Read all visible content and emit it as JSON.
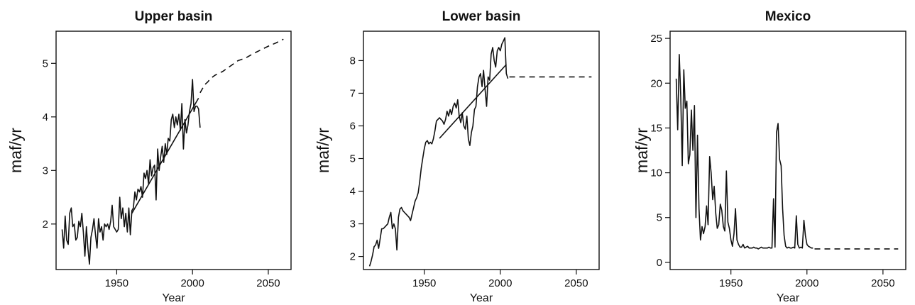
{
  "chart_data": [
    {
      "type": "line",
      "title": "Upper basin",
      "xlabel": "Year",
      "ylabel": "maf/yr",
      "xlim": [
        1910,
        2065
      ],
      "ylim": [
        1.15,
        5.6
      ],
      "xticks": [
        1950,
        2000,
        2050
      ],
      "yticks": [
        2,
        3,
        4,
        5
      ],
      "grid": false,
      "series": [
        {
          "style": "solid",
          "x": [
            1914,
            1915,
            1916,
            1917,
            1918,
            1919,
            1920,
            1921,
            1922,
            1923,
            1924,
            1925,
            1926,
            1927,
            1928,
            1929,
            1930,
            1931,
            1932,
            1933,
            1934,
            1935,
            1936,
            1937,
            1938,
            1939,
            1940,
            1941,
            1942,
            1943,
            1944,
            1945,
            1946,
            1947,
            1948,
            1949,
            1950,
            1951,
            1952,
            1953,
            1954,
            1955,
            1956,
            1957,
            1958,
            1959,
            1960,
            1961,
            1962,
            1963,
            1964,
            1965,
            1966,
            1967,
            1968,
            1969,
            1970,
            1971,
            1972,
            1973,
            1974,
            1975,
            1976,
            1977,
            1978,
            1979,
            1980,
            1981,
            1982,
            1983,
            1984,
            1985,
            1986,
            1987,
            1988,
            1989,
            1990,
            1991,
            1992,
            1993,
            1994,
            1995,
            1996,
            1997,
            1998,
            1999,
            2000,
            2001,
            2002,
            2003,
            2004,
            2005
          ],
          "y": [
            1.9,
            1.55,
            2.15,
            1.7,
            1.62,
            2.2,
            2.3,
            1.95,
            2.0,
            1.7,
            1.75,
            2.05,
            1.95,
            2.2,
            1.85,
            1.4,
            1.95,
            1.55,
            1.25,
            1.75,
            1.9,
            2.1,
            1.8,
            1.55,
            2.1,
            1.85,
            1.95,
            1.7,
            2.0,
            1.95,
            2.0,
            1.9,
            2.05,
            2.35,
            1.95,
            1.9,
            1.85,
            1.9,
            2.5,
            2.1,
            2.3,
            1.95,
            2.2,
            1.85,
            2.3,
            1.8,
            2.25,
            2.3,
            2.6,
            2.45,
            2.65,
            2.6,
            2.7,
            2.5,
            2.95,
            2.85,
            3.0,
            2.75,
            3.2,
            2.9,
            3.05,
            3.1,
            2.45,
            3.4,
            3.0,
            3.25,
            3.45,
            3.15,
            3.5,
            3.3,
            3.6,
            3.55,
            3.95,
            4.05,
            3.8,
            4.0,
            3.85,
            4.05,
            3.75,
            4.25,
            3.4,
            3.95,
            3.7,
            3.85,
            4.1,
            4.25,
            4.7,
            4.1,
            4.2,
            4.2,
            4.15,
            3.8
          ]
        },
        {
          "style": "solid",
          "x": [
            1960,
            2004
          ],
          "y": [
            2.2,
            4.35
          ]
        },
        {
          "style": "dashed",
          "x": [
            2005,
            2008,
            2010,
            2012,
            2015,
            2020,
            2025,
            2030,
            2035,
            2040,
            2045,
            2050,
            2055,
            2060
          ],
          "y": [
            4.45,
            4.6,
            4.65,
            4.72,
            4.78,
            4.85,
            4.95,
            5.05,
            5.1,
            5.18,
            5.25,
            5.32,
            5.38,
            5.45
          ]
        }
      ]
    },
    {
      "type": "line",
      "title": "Lower basin",
      "xlabel": "Year",
      "ylabel": "maf/yr",
      "xlim": [
        1910,
        2065
      ],
      "ylim": [
        1.6,
        8.9
      ],
      "xticks": [
        1950,
        2000,
        2050
      ],
      "yticks": [
        2,
        3,
        4,
        5,
        6,
        7,
        8
      ],
      "grid": false,
      "series": [
        {
          "style": "solid",
          "x": [
            1914,
            1915,
            1916,
            1917,
            1918,
            1919,
            1920,
            1921,
            1922,
            1923,
            1924,
            1925,
            1926,
            1927,
            1928,
            1929,
            1930,
            1931,
            1932,
            1933,
            1934,
            1935,
            1936,
            1937,
            1938,
            1939,
            1940,
            1941,
            1942,
            1943,
            1944,
            1945,
            1946,
            1947,
            1948,
            1949,
            1950,
            1951,
            1952,
            1953,
            1954,
            1955,
            1956,
            1957,
            1958,
            1959,
            1960,
            1961,
            1962,
            1963,
            1964,
            1965,
            1966,
            1967,
            1968,
            1969,
            1970,
            1971,
            1972,
            1973,
            1974,
            1975,
            1976,
            1977,
            1978,
            1979,
            1980,
            1981,
            1982,
            1983,
            1984,
            1985,
            1986,
            1987,
            1988,
            1989,
            1990,
            1991,
            1992,
            1993,
            1994,
            1995,
            1996,
            1997,
            1998,
            1999,
            2000,
            2001,
            2002,
            2003,
            2004,
            2005
          ],
          "y": [
            1.7,
            1.85,
            2.05,
            2.3,
            2.35,
            2.5,
            2.25,
            2.55,
            2.85,
            2.85,
            2.9,
            2.95,
            3.0,
            3.2,
            3.35,
            2.85,
            3.0,
            2.85,
            2.2,
            3.2,
            3.45,
            3.5,
            3.4,
            3.35,
            3.3,
            3.25,
            3.2,
            3.1,
            3.3,
            3.5,
            3.7,
            3.8,
            3.95,
            4.3,
            4.7,
            5.0,
            5.3,
            5.5,
            5.55,
            5.45,
            5.5,
            5.45,
            5.6,
            5.85,
            6.15,
            6.2,
            6.25,
            6.2,
            6.15,
            6.05,
            6.2,
            6.45,
            6.3,
            6.5,
            6.35,
            6.6,
            6.7,
            6.55,
            6.8,
            6.3,
            6.1,
            6.4,
            6.0,
            5.9,
            6.3,
            5.6,
            5.4,
            5.8,
            6.0,
            6.5,
            6.6,
            7.2,
            7.5,
            7.6,
            7.2,
            7.7,
            7.1,
            6.6,
            7.5,
            7.4,
            8.2,
            8.4,
            8.0,
            7.8,
            8.3,
            8.4,
            8.3,
            8.5,
            8.6,
            8.7,
            7.6,
            7.45
          ]
        },
        {
          "style": "solid",
          "x": [
            1960,
            2004
          ],
          "y": [
            5.62,
            7.88
          ]
        },
        {
          "style": "dashed",
          "x": [
            2006,
            2060
          ],
          "y": [
            7.5,
            7.5
          ]
        }
      ]
    },
    {
      "type": "line",
      "title": "Mexico",
      "xlabel": "Year",
      "ylabel": "maf/yr",
      "xlim": [
        1910,
        2065
      ],
      "ylim": [
        -0.8,
        25.8
      ],
      "xticks": [
        1950,
        2000,
        2050
      ],
      "yticks": [
        0,
        5,
        10,
        15,
        20,
        25
      ],
      "grid": false,
      "series": [
        {
          "style": "solid",
          "x": [
            1914,
            1915,
            1916,
            1917,
            1918,
            1919,
            1920,
            1921,
            1922,
            1923,
            1924,
            1925,
            1926,
            1927,
            1928,
            1929,
            1930,
            1931,
            1932,
            1933,
            1934,
            1935,
            1936,
            1937,
            1938,
            1939,
            1940,
            1941,
            1942,
            1943,
            1944,
            1945,
            1946,
            1947,
            1948,
            1949,
            1950,
            1951,
            1952,
            1953,
            1954,
            1955,
            1956,
            1957,
            1958,
            1959,
            1960,
            1961,
            1962,
            1963,
            1964,
            1965,
            1966,
            1967,
            1968,
            1969,
            1970,
            1971,
            1972,
            1973,
            1974,
            1975,
            1976,
            1977,
            1978,
            1979,
            1980,
            1981,
            1982,
            1983,
            1984,
            1985,
            1986,
            1987,
            1988,
            1989,
            1990,
            1991,
            1992,
            1993,
            1994,
            1995,
            1996,
            1997,
            1998,
            1999,
            2000,
            2001,
            2002,
            2003,
            2004
          ],
          "y": [
            20.5,
            14.8,
            23.2,
            18.5,
            10.8,
            21.5,
            17.2,
            18.0,
            11.0,
            12.0,
            17.0,
            12.5,
            17.5,
            5.0,
            14.2,
            6.0,
            2.5,
            4.0,
            3.2,
            4.0,
            6.3,
            4.2,
            11.8,
            10.0,
            7.0,
            8.5,
            5.5,
            3.8,
            4.2,
            6.5,
            5.8,
            4.0,
            3.5,
            10.2,
            4.5,
            3.8,
            2.5,
            1.8,
            3.2,
            6.0,
            2.5,
            2.0,
            1.7,
            1.7,
            2.0,
            1.6,
            1.7,
            1.8,
            1.6,
            1.6,
            1.6,
            1.7,
            1.6,
            1.6,
            1.5,
            1.6,
            1.7,
            1.6,
            1.6,
            1.6,
            1.6,
            1.7,
            1.6,
            1.6,
            7.1,
            1.7,
            14.5,
            15.5,
            11.5,
            10.8,
            6.0,
            3.0,
            1.8,
            1.6,
            1.7,
            1.6,
            1.6,
            1.7,
            1.6,
            5.2,
            2.0,
            1.6,
            1.7,
            1.6,
            4.7,
            3.0,
            2.0,
            1.8,
            1.7,
            1.6,
            1.6
          ]
        },
        {
          "style": "dashed",
          "x": [
            2005,
            2060
          ],
          "y": [
            1.5,
            1.5
          ]
        }
      ]
    }
  ]
}
